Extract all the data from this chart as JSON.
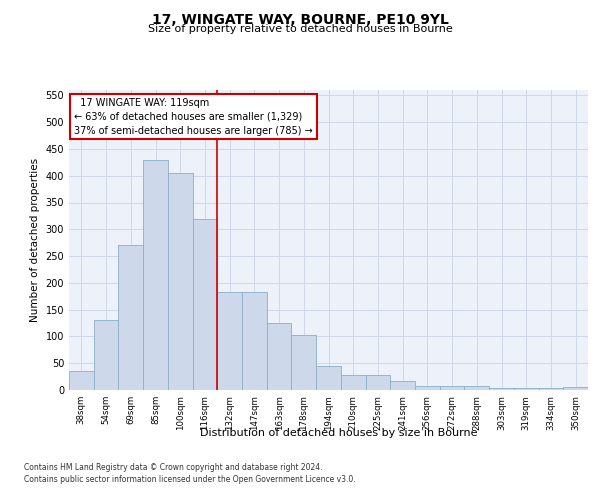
{
  "title1": "17, WINGATE WAY, BOURNE, PE10 9YL",
  "title2": "Size of property relative to detached houses in Bourne",
  "xlabel": "Distribution of detached houses by size in Bourne",
  "ylabel": "Number of detached properties",
  "categories": [
    "38sqm",
    "54sqm",
    "69sqm",
    "85sqm",
    "100sqm",
    "116sqm",
    "132sqm",
    "147sqm",
    "163sqm",
    "178sqm",
    "194sqm",
    "210sqm",
    "225sqm",
    "241sqm",
    "256sqm",
    "272sqm",
    "288sqm",
    "303sqm",
    "319sqm",
    "334sqm",
    "350sqm"
  ],
  "values": [
    35,
    130,
    270,
    430,
    405,
    320,
    183,
    183,
    125,
    103,
    45,
    28,
    28,
    16,
    8,
    8,
    8,
    3,
    3,
    3,
    6
  ],
  "bar_color": "#cdd9ea",
  "bar_edge_color": "#8aafc8",
  "grid_color": "#d0d8e8",
  "red_line_x": 5.5,
  "annotation_text": "  17 WINGATE WAY: 119sqm  \n← 63% of detached houses are smaller (1,329)\n37% of semi-detached houses are larger (785) →",
  "annotation_box_color": "#ffffff",
  "annotation_box_edge": "#cc0000",
  "ylim": [
    0,
    560
  ],
  "yticks": [
    0,
    50,
    100,
    150,
    200,
    250,
    300,
    350,
    400,
    450,
    500,
    550
  ],
  "background_color": "#edf1f9",
  "footer1": "Contains HM Land Registry data © Crown copyright and database right 2024.",
  "footer2": "Contains public sector information licensed under the Open Government Licence v3.0."
}
